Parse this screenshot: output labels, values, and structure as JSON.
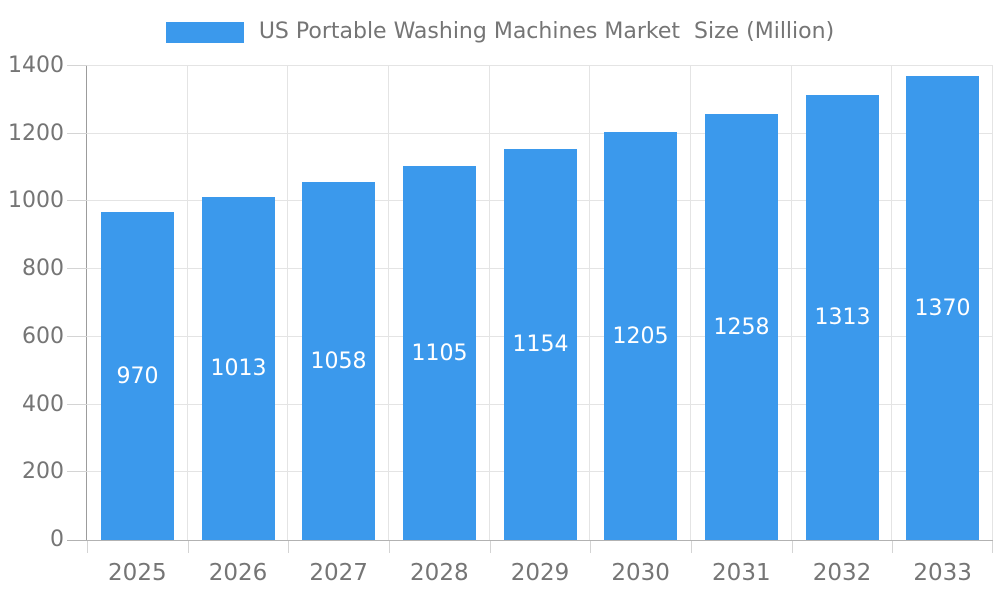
{
  "chart_data": {
    "type": "bar",
    "title": "US Portable Washing Machines Market  Size (Million)",
    "legend_label": "US Portable Washing Machines Market  Size (Million)",
    "legend_position": "top-center",
    "categories": [
      "2025",
      "2026",
      "2027",
      "2028",
      "2029",
      "2030",
      "2031",
      "2032",
      "2033"
    ],
    "values": [
      970,
      1013,
      1058,
      1105,
      1154,
      1205,
      1258,
      1313,
      1370
    ],
    "xlabel": "",
    "ylabel": "",
    "ylim": [
      0,
      1400
    ],
    "yticks": [
      0,
      200,
      400,
      600,
      800,
      1000,
      1200,
      1400
    ],
    "grid": true,
    "bar_label_position": "inside-center"
  },
  "colors": {
    "bar": "#3b99ec",
    "bar_value_label": "#ffffff",
    "legend_text": "#757575",
    "axis_label_text": "#757575",
    "gridline": "#e4e4e4",
    "tick": "#d4d4d4",
    "y_axis_line": "#9c9c9c",
    "x_axis_line": "#b2b2b2",
    "background": "#ffffff"
  }
}
